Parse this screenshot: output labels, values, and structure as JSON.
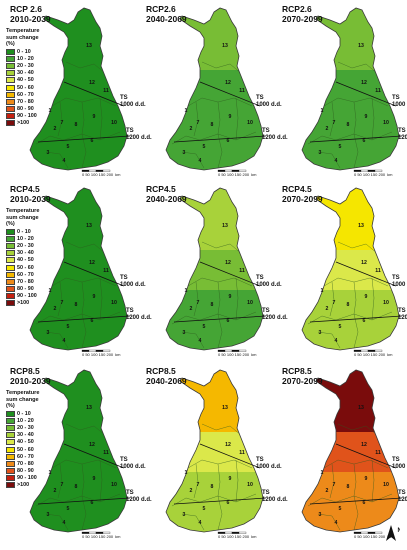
{
  "legend": {
    "title": "Temperature sum change (%)",
    "classes": [
      {
        "label": "0 - 10",
        "color": "#1f8f1f"
      },
      {
        "label": "10 - 20",
        "color": "#45a535"
      },
      {
        "label": "20 - 30",
        "color": "#78bd35"
      },
      {
        "label": "30 - 40",
        "color": "#a8d23a"
      },
      {
        "label": "40 - 50",
        "color": "#dbe84a"
      },
      {
        "label": "50 - 60",
        "color": "#f5e600"
      },
      {
        "label": "60 - 70",
        "color": "#f5b800"
      },
      {
        "label": "70 - 80",
        "color": "#ed8a1a"
      },
      {
        "label": "80 - 90",
        "color": "#e0531b"
      },
      {
        "label": "90 - 100",
        "color": "#c42010"
      },
      {
        "label": ">100",
        "color": "#7a0c0c"
      }
    ]
  },
  "ts_labels": {
    "north": [
      "TS",
      "1000 d.d."
    ],
    "south": [
      "TS",
      "1200 d.d."
    ]
  },
  "scale": {
    "ticks": "0  50 100 150 200",
    "unit": "km"
  },
  "north_arrow": "N",
  "panels": [
    {
      "scenario": "RCP 2.6",
      "period": "2010-2039",
      "colors": {
        "north": "#1f8f1f",
        "middle": "#1f8f1f",
        "south": "#1f8f1f"
      },
      "has_legend": true
    },
    {
      "scenario": "RCP2.6",
      "period": "2040-2069",
      "colors": {
        "north": "#78bd35",
        "middle": "#45a535",
        "south": "#45a535"
      },
      "has_legend": false
    },
    {
      "scenario": "RCP2.6",
      "period": "2070-2099",
      "colors": {
        "north": "#78bd35",
        "middle": "#45a535",
        "south": "#45a535"
      },
      "has_legend": false
    },
    {
      "scenario": "RCP4.5",
      "period": "2010-2039",
      "colors": {
        "north": "#1f8f1f",
        "middle": "#1f8f1f",
        "south": "#1f8f1f"
      },
      "has_legend": true
    },
    {
      "scenario": "RCP4.5",
      "period": "2040-2069",
      "colors": {
        "north": "#a8d23a",
        "middle": "#78bd35",
        "south": "#45a535"
      },
      "has_legend": false
    },
    {
      "scenario": "RCP4.5",
      "period": "2070-2099",
      "colors": {
        "north": "#f5e600",
        "middle": "#dbe84a",
        "south": "#a8d23a"
      },
      "has_legend": false
    },
    {
      "scenario": "RCP8.5",
      "period": "2010-2039",
      "colors": {
        "north": "#1f8f1f",
        "middle": "#1f8f1f",
        "south": "#1f8f1f"
      },
      "has_legend": true
    },
    {
      "scenario": "RCP8.5",
      "period": "2040-2069",
      "colors": {
        "north": "#f5b800",
        "middle": "#dbe84a",
        "south": "#a8d23a"
      },
      "has_legend": false
    },
    {
      "scenario": "RCP8.5",
      "period": "2070-2099",
      "colors": {
        "north": "#7a0c0c",
        "middle": "#e0531b",
        "south": "#ed8a1a"
      },
      "has_legend": false
    }
  ],
  "region_numbers": [
    "1",
    "2",
    "3",
    "4",
    "5",
    "6",
    "7",
    "8",
    "9",
    "10",
    "11",
    "12",
    "13"
  ]
}
